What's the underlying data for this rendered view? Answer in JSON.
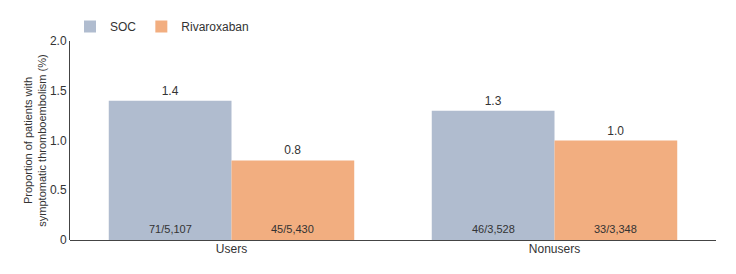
{
  "chart_data": {
    "type": "bar",
    "categories": [
      "Users",
      "Nonusers"
    ],
    "series": [
      {
        "name": "SOC",
        "color": "#b0bccf",
        "values": [
          1.4,
          1.3
        ],
        "value_labels": [
          "1.4",
          "1.3"
        ],
        "inner_labels": [
          "71/5,107",
          "46/3,528"
        ]
      },
      {
        "name": "Rivaroxaban",
        "color": "#f2ae80",
        "values": [
          0.8,
          1.0
        ],
        "value_labels": [
          "0.8",
          "1.0"
        ],
        "inner_labels": [
          "45/5,430",
          "33/3,348"
        ]
      }
    ],
    "ylabel": "Proportion of patients with\nsymptomatic thromboembolism (%)",
    "ylim": [
      0,
      2.0
    ],
    "yticks": [
      0,
      0.5,
      {
        "value": 1.0,
        "label": "1.0"
      },
      1.5,
      {
        "value": 2.0,
        "label": "2.0"
      }
    ],
    "grid": false,
    "legend": "upper left",
    "data_labels": true
  }
}
